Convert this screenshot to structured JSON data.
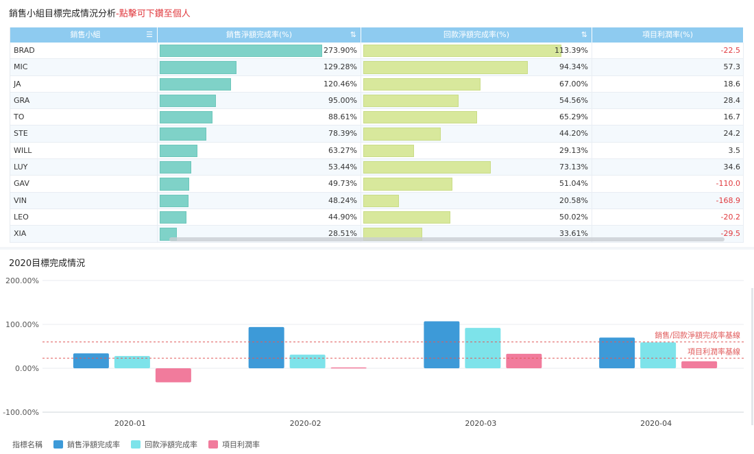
{
  "top_title": {
    "main": "銷售小組目標完成情況分析",
    "link": "-點擊可下鑽至個人"
  },
  "table": {
    "headers": {
      "name": "銷售小組",
      "sales": "銷售淨額完成率(%)",
      "ret": "回款淨額完成率(%)",
      "profit": "項目利潤率(%)"
    },
    "sort_icon": "sort-icon",
    "rows": [
      {
        "name": "BRAD",
        "sales": "273.90%",
        "sales_v": 273.9,
        "ret": "113.39%",
        "ret_v": 113.39,
        "profit": "-22.5"
      },
      {
        "name": "MIC",
        "sales": "129.28%",
        "sales_v": 129.28,
        "ret": "94.34%",
        "ret_v": 94.34,
        "profit": "57.3"
      },
      {
        "name": "JA",
        "sales": "120.46%",
        "sales_v": 120.46,
        "ret": "67.00%",
        "ret_v": 67.0,
        "profit": "18.6"
      },
      {
        "name": "GRA",
        "sales": "95.00%",
        "sales_v": 95.0,
        "ret": "54.56%",
        "ret_v": 54.56,
        "profit": "28.4"
      },
      {
        "name": "TO",
        "sales": "88.61%",
        "sales_v": 88.61,
        "ret": "65.29%",
        "ret_v": 65.29,
        "profit": "16.7"
      },
      {
        "name": "STE",
        "sales": "78.39%",
        "sales_v": 78.39,
        "ret": "44.20%",
        "ret_v": 44.2,
        "profit": "24.2"
      },
      {
        "name": "WILL",
        "sales": "63.27%",
        "sales_v": 63.27,
        "ret": "29.13%",
        "ret_v": 29.13,
        "profit": "3.5"
      },
      {
        "name": "LUY",
        "sales": "53.44%",
        "sales_v": 53.44,
        "ret": "73.13%",
        "ret_v": 73.13,
        "profit": "34.6"
      },
      {
        "name": "GAV",
        "sales": "49.73%",
        "sales_v": 49.73,
        "ret": "51.04%",
        "ret_v": 51.04,
        "profit": "-110.0"
      },
      {
        "name": "VIN",
        "sales": "48.24%",
        "sales_v": 48.24,
        "ret": "20.58%",
        "ret_v": 20.58,
        "profit": "-168.9"
      },
      {
        "name": "LEO",
        "sales": "44.90%",
        "sales_v": 44.9,
        "ret": "50.02%",
        "ret_v": 50.02,
        "profit": "-20.2"
      },
      {
        "name": "XIA",
        "sales": "28.51%",
        "sales_v": 28.51,
        "ret": "33.61%",
        "ret_v": 33.61,
        "profit": "-29.5"
      }
    ]
  },
  "chart_title": "2020目標完成情況",
  "legend": {
    "title": "指標名稱"
  },
  "colors": {
    "sales": "#3d9ad8",
    "ret": "#7de3ea",
    "profit": "#f17b9c",
    "baseline": "#e05a5a"
  },
  "chart_data": {
    "type": "bar",
    "categories": [
      "2020-01",
      "2020-02",
      "2020-03",
      "2020-04"
    ],
    "series": [
      {
        "name": "銷售淨額完成率",
        "values": [
          34,
          94,
          107,
          70
        ]
      },
      {
        "name": "回款淨額完成率",
        "values": [
          28,
          31,
          92,
          59
        ]
      },
      {
        "name": "項目利潤率",
        "values": [
          -32,
          2,
          33,
          16
        ]
      }
    ],
    "yticks": [
      "200.00%",
      "100.00%",
      "0.00%",
      "-100.00%"
    ],
    "ylim": [
      -100,
      200
    ],
    "reference_lines": [
      {
        "label": "銷售/回款淨額完成率基線",
        "value": 60
      },
      {
        "label": "項目利潤率基線",
        "value": 23
      }
    ]
  }
}
